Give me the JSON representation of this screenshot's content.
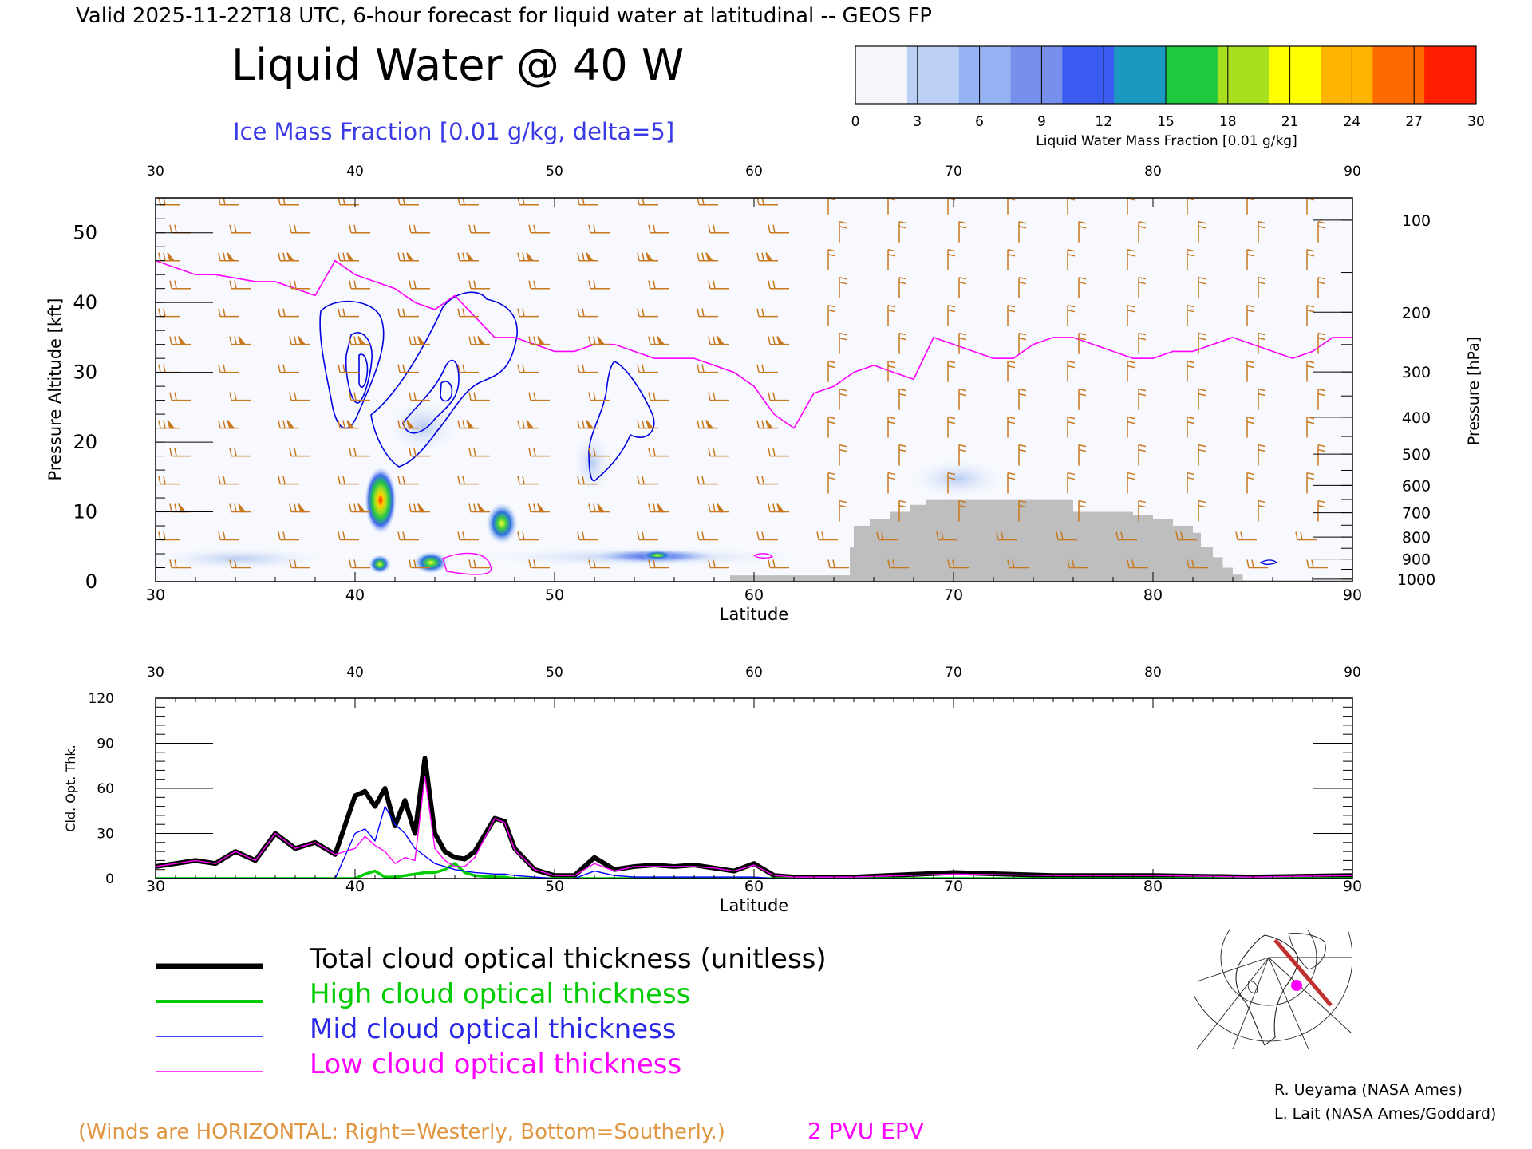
{
  "header": {
    "valid_line": "Valid 2025-11-22T18 UTC, 6-hour forecast for liquid water at latitudinal -- GEOS FP",
    "title": "Liquid Water @ 40 W",
    "subtitle": "Ice Mass Fraction [0.01 g/kg, delta=5]"
  },
  "colorbar": {
    "label": "Liquid Water Mass Fraction [0.01 g/kg]",
    "ticks": [
      "0",
      "3",
      "6",
      "9",
      "12",
      "15",
      "18",
      "21",
      "24",
      "27",
      "30"
    ],
    "colors": [
      "#f4f6fc",
      "#bcd0f6",
      "#95b2f2",
      "#7790ec",
      "#3a5cf0",
      "#1a9ac0",
      "#20c840",
      "#a8e020",
      "#ffff00",
      "#ffb400",
      "#ff6a00",
      "#ff1e00"
    ]
  },
  "chart_data": [
    {
      "type": "heatmap",
      "panel": "cross-section",
      "xlabel": "Latitude",
      "ylabel": "Pressure Altitude [kft]",
      "ylabel_right": "Pressure [hPa]",
      "xlim": [
        30,
        90
      ],
      "ylim": [
        0,
        55
      ],
      "x_ticks": [
        "30",
        "40",
        "50",
        "60",
        "70",
        "80",
        "90"
      ],
      "y_ticks": [
        "0",
        "10",
        "20",
        "30",
        "40",
        "50"
      ],
      "pressure_ticks": [
        "100",
        "200",
        "300",
        "400",
        "500",
        "600",
        "700",
        "800",
        "900",
        "1000"
      ],
      "liquid_water_maxima": [
        {
          "lat": 41.2,
          "alt_kft": 12.0,
          "value": 29
        },
        {
          "lat": 47.4,
          "alt_kft": 8.6,
          "value": 18
        },
        {
          "lat": 43.8,
          "alt_kft": 2.8,
          "value": 16
        },
        {
          "lat": 41.2,
          "alt_kft": 2.6,
          "value": 12
        },
        {
          "lat": 55.0,
          "alt_kft": 3.8,
          "value": 12
        }
      ],
      "epv_2pvu_line": {
        "name": "2 PVU EPV",
        "lat": [
          30,
          31,
          32,
          33,
          34,
          35,
          36,
          37,
          38,
          39,
          40,
          41,
          42,
          43,
          44,
          45,
          46,
          47,
          48,
          49,
          50,
          51,
          52,
          53,
          54,
          55,
          56,
          57,
          58,
          59,
          60,
          61,
          62,
          63,
          64,
          65,
          66,
          67,
          68,
          69,
          70,
          71,
          72,
          73,
          74,
          75,
          76,
          77,
          78,
          79,
          80,
          81,
          82,
          83,
          84,
          85,
          86,
          87,
          88,
          89,
          90
        ],
        "alt_kft": [
          46,
          45,
          44,
          44,
          43.5,
          43,
          43,
          42,
          41,
          46,
          44,
          43,
          42,
          40,
          39,
          41,
          38,
          35,
          35,
          34,
          33,
          33,
          34,
          34,
          33,
          32,
          32,
          32,
          31,
          30,
          28,
          24,
          22,
          27,
          28,
          30,
          31,
          30,
          29,
          35,
          34,
          33,
          32,
          32,
          34,
          35,
          35,
          34,
          33,
          32,
          32,
          33,
          33,
          34,
          35,
          34,
          33,
          32,
          33,
          35,
          35
        ]
      },
      "ice_contours_kft": {
        "delta": 5
      },
      "terrain": {
        "lat": [
          30,
          58.8,
          58.8,
          61.6,
          61.6,
          64.8,
          65,
          65.8,
          66.8,
          67.8,
          68.6,
          70,
          72,
          74,
          75.4,
          76,
          78,
          79,
          80,
          81,
          82,
          82.4,
          83,
          83.5,
          84,
          84.5,
          90
        ],
        "alt_kft": [
          0,
          0,
          0.9,
          0.9,
          0.9,
          5,
          8,
          9,
          10,
          11,
          11.7,
          11.7,
          11.7,
          11.7,
          11.7,
          10,
          10,
          9.5,
          9,
          8,
          7,
          5,
          3.5,
          2,
          1,
          0.2,
          0
        ]
      }
    },
    {
      "type": "line",
      "panel": "optical-thickness",
      "xlabel": "Latitude",
      "ylabel": "Cld. Opt. Thk.",
      "xlim": [
        30,
        90
      ],
      "ylim": [
        0,
        120
      ],
      "x_ticks": [
        "30",
        "40",
        "50",
        "60",
        "70",
        "80",
        "90"
      ],
      "y_ticks": [
        "0",
        "30",
        "60",
        "90",
        "120"
      ],
      "x": [
        30,
        31,
        32,
        33,
        34,
        35,
        36,
        37,
        38,
        39,
        40,
        40.5,
        41,
        41.5,
        42,
        42.5,
        43,
        43.5,
        44,
        44.5,
        45,
        45.5,
        46,
        47,
        47.5,
        48,
        49,
        50,
        51,
        52,
        53,
        54,
        55,
        56,
        57,
        58,
        59,
        60,
        61,
        62,
        65,
        70,
        75,
        80,
        85,
        90
      ],
      "series": [
        {
          "name": "Total cloud optical thickness (unitless)",
          "color": "#000000",
          "values": [
            8,
            10,
            12,
            10,
            18,
            12,
            30,
            20,
            24,
            16,
            55,
            58,
            48,
            60,
            35,
            52,
            30,
            80,
            30,
            18,
            14,
            13,
            18,
            40,
            38,
            20,
            6,
            2,
            2,
            14,
            6,
            8,
            9,
            8,
            9,
            7,
            5,
            10,
            2,
            1,
            1,
            4,
            2,
            2,
            1,
            2
          ]
        },
        {
          "name": "High cloud optical thickness",
          "color": "#00cc00",
          "values": [
            0,
            0,
            0,
            0,
            0,
            0,
            0,
            0,
            0,
            0,
            0,
            3,
            5,
            1,
            1,
            2,
            3,
            4,
            4,
            6,
            10,
            4,
            2,
            1,
            1,
            0,
            0,
            0,
            0,
            0,
            0,
            0,
            0,
            0,
            0,
            0,
            0,
            0,
            0,
            0,
            0,
            0,
            0,
            0,
            0,
            0
          ]
        },
        {
          "name": "Mid cloud optical thickness",
          "color": "#0000ff",
          "values": [
            0,
            0,
            0,
            0,
            0,
            0,
            0,
            0,
            0,
            0,
            30,
            33,
            25,
            48,
            36,
            30,
            20,
            15,
            10,
            8,
            6,
            5,
            4,
            3,
            3,
            2,
            1,
            0,
            0,
            5,
            2,
            1,
            1,
            1,
            1,
            1,
            1,
            1,
            0,
            0,
            0,
            0,
            0,
            0,
            0,
            0
          ]
        },
        {
          "name": "Low cloud optical thickness",
          "color": "#ff00ff",
          "values": [
            8,
            10,
            12,
            10,
            18,
            12,
            30,
            20,
            24,
            16,
            20,
            28,
            22,
            18,
            10,
            14,
            12,
            68,
            20,
            12,
            8,
            8,
            14,
            40,
            37,
            19,
            6,
            2,
            2,
            10,
            5,
            8,
            8,
            8,
            8,
            7,
            5,
            9,
            2,
            1,
            1,
            3,
            2,
            2,
            1,
            2
          ]
        }
      ]
    }
  ],
  "legend": {
    "total": "Total cloud optical thickness (unitless)",
    "high": "High cloud optical thickness",
    "mid": "Mid cloud optical thickness",
    "low": "Low cloud optical thickness"
  },
  "footer": {
    "winds_note": "(Winds are HORIZONTAL: Right=Westerly, Bottom=Southerly.)",
    "epv_label": "2 PVU EPV",
    "credit1": "R. Ueyama (NASA Ames)",
    "credit2": "L. Lait (NASA Ames/Goddard)"
  },
  "colors": {
    "wind_barbs": "#c8781e",
    "epv": "#ff00ff",
    "ice_contours": "#0000e0",
    "terrain": "#bebebe",
    "winds_note": "#e09640",
    "subtitle": "#3a3ae6"
  },
  "inset_map": {
    "icon": "polar-map-icon"
  }
}
